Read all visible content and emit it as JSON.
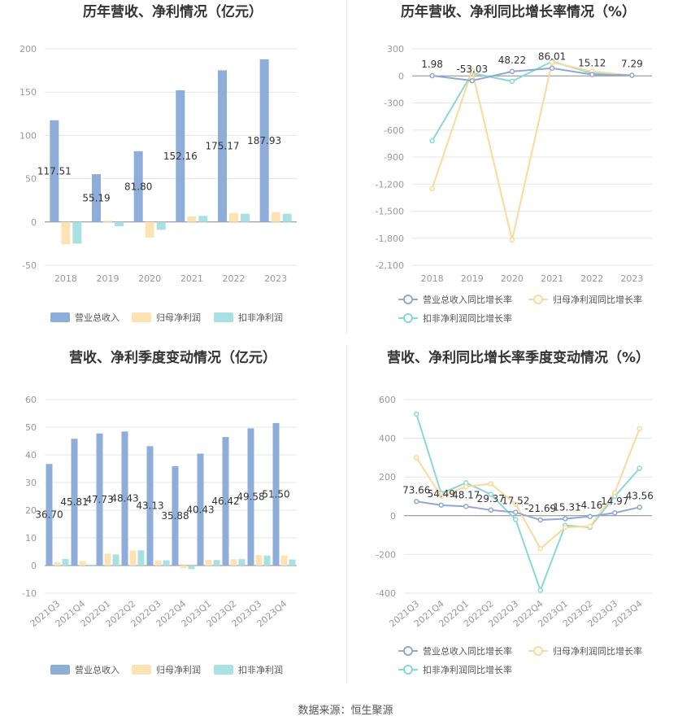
{
  "source": "数据来源：恒生聚源",
  "colors": {
    "revenue": "#8eadd8",
    "net_profit": "#fde3b4",
    "deducted_profit": "#a9e1e3",
    "revenue_line": "#8fa8d6",
    "net_profit_line": "#fbd99c",
    "deducted_line": "#8ad7d7"
  },
  "chart_data": [
    {
      "type": "bar",
      "title": "历年营收、净利情况（亿元）",
      "categories": [
        "2018",
        "2019",
        "2020",
        "2021",
        "2022",
        "2023"
      ],
      "ylim": [
        -50,
        200
      ],
      "yticks": [
        -50,
        0,
        50,
        100,
        150,
        200
      ],
      "series": [
        {
          "name": "营业总收入",
          "values": [
            117.51,
            55.19,
            81.8,
            152.16,
            175.17,
            187.93
          ],
          "labels": [
            "117.51",
            "55.19",
            "81.80",
            "152.16",
            "175.17",
            "187.93"
          ]
        },
        {
          "name": "归母净利润",
          "values": [
            -26,
            1.5,
            -18,
            6.5,
            10.5,
            11.5
          ]
        },
        {
          "name": "扣非净利润",
          "values": [
            -25,
            -5,
            -9,
            7,
            9.5,
            9.5
          ]
        }
      ],
      "legend": "bottom"
    },
    {
      "type": "line",
      "title": "历年营收、净利同比增长率情况（%）",
      "categories": [
        "2018",
        "2019",
        "2020",
        "2021",
        "2022",
        "2023"
      ],
      "ylim": [
        -2100,
        300
      ],
      "yticks": [
        -2100,
        -1800,
        -1500,
        -1200,
        -900,
        -600,
        -300,
        0,
        300
      ],
      "yticklabels": [
        "-2,100",
        "-1,800",
        "-1,500",
        "-1,200",
        "-900",
        "-600",
        "-300",
        "0",
        "300"
      ],
      "series": [
        {
          "name": "营业总收入同比增长率",
          "values": [
            1.98,
            -53.03,
            48.22,
            86.01,
            15.12,
            7.29
          ],
          "labels": [
            "1.98",
            "-53.03",
            "48.22",
            "86.01",
            "15.12",
            "7.29"
          ]
        },
        {
          "name": "归母净利润同比增长率",
          "values": [
            -1250,
            60,
            -1820,
            150,
            50,
            5
          ]
        },
        {
          "name": "扣非净利润同比增长率",
          "values": [
            -720,
            30,
            -60,
            160,
            30,
            5
          ]
        }
      ],
      "legend": "bottom"
    },
    {
      "type": "bar",
      "title": "营收、净利季度变动情况（亿元）",
      "categories": [
        "2021Q3",
        "2021Q4",
        "2022Q1",
        "2022Q2",
        "2022Q3",
        "2022Q4",
        "2023Q1",
        "2023Q2",
        "2023Q3",
        "2023Q4"
      ],
      "ylim": [
        -10,
        60
      ],
      "yticks": [
        -10,
        0,
        10,
        20,
        30,
        40,
        50,
        60
      ],
      "series": [
        {
          "name": "营业总收入",
          "values": [
            36.7,
            45.81,
            47.73,
            48.43,
            43.13,
            35.88,
            40.43,
            46.42,
            49.58,
            51.5
          ],
          "labels": [
            "36.70",
            "45.81",
            "47.73",
            "48.43",
            "43.13",
            "35.88",
            "40.43",
            "46.42",
            "49.58",
            "51.50"
          ]
        },
        {
          "name": "归母净利润",
          "values": [
            1.2,
            1.6,
            4.3,
            5.5,
            1.8,
            -1.0,
            2.0,
            2.3,
            3.8,
            3.6
          ]
        },
        {
          "name": "扣非净利润",
          "values": [
            2.4,
            0.3,
            4.0,
            5.5,
            1.9,
            -1.3,
            2.0,
            2.3,
            3.6,
            2.2
          ]
        }
      ],
      "legend": "bottom"
    },
    {
      "type": "line",
      "title": "营收、净利同比增长率季度变动情况（%）",
      "categories": [
        "2021Q3",
        "2021Q4",
        "2022Q1",
        "2022Q2",
        "2022Q3",
        "2022Q4",
        "2023Q1",
        "2023Q2",
        "2023Q3",
        "2023Q4"
      ],
      "ylim": [
        -400,
        600
      ],
      "yticks": [
        -400,
        -200,
        0,
        200,
        400,
        600
      ],
      "series": [
        {
          "name": "营业总收入同比增长率",
          "values": [
            73.66,
            54.49,
            48.17,
            29.37,
            17.52,
            -21.69,
            -15.31,
            -4.16,
            14.97,
            43.56
          ],
          "labels": [
            "73.66",
            "54.49",
            "48.17",
            "29.37",
            "17.52",
            "-21.69",
            "-15.31",
            "-4.16",
            "14.97",
            "43.56"
          ]
        },
        {
          "name": "归母净利润同比增长率",
          "values": [
            300,
            100,
            150,
            165,
            60,
            -170,
            -60,
            -55,
            120,
            450
          ]
        },
        {
          "name": "扣非净利润同比增长率",
          "values": [
            525,
            115,
            170,
            110,
            -20,
            -385,
            -50,
            -60,
            100,
            245
          ]
        }
      ],
      "legend": "bottom"
    }
  ]
}
